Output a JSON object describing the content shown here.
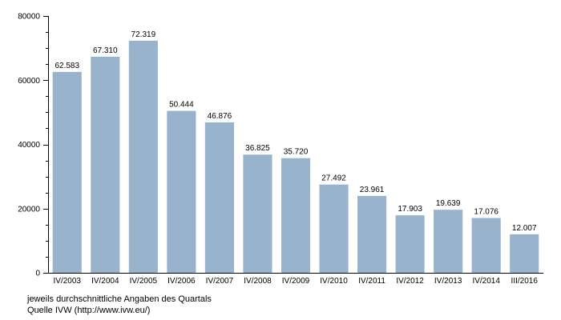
{
  "chart_data": {
    "type": "bar",
    "categories": [
      "IV/2003",
      "IV/2004",
      "IV/2005",
      "IV/2006",
      "IV/2007",
      "IV/2008",
      "IV/2009",
      "IV/2010",
      "IV/2011",
      "IV/2012",
      "IV/2013",
      "IV/2014",
      "III/2016"
    ],
    "values": [
      62583,
      67310,
      72319,
      50444,
      46876,
      36825,
      35720,
      27492,
      23961,
      17903,
      19639,
      17076,
      12007
    ],
    "value_labels": [
      "62.583",
      "67.310",
      "72.319",
      "50.444",
      "46.876",
      "36.825",
      "35.720",
      "27.492",
      "23.961",
      "17.903",
      "19.639",
      "17.076",
      "12.007"
    ],
    "title": "",
    "xlabel": "",
    "ylabel": "",
    "ylim": [
      0,
      80000
    ],
    "yticks": [
      0,
      20000,
      40000,
      60000,
      80000
    ],
    "ytick_labels": [
      "0",
      "20000",
      "40000",
      "60000",
      "80000"
    ],
    "grid": false,
    "bar_color": "#9ab3cd"
  },
  "footnotes": {
    "line1": "jeweils durchschnittliche Angaben des Quartals",
    "line2": "Quelle IVW (http://www.ivw.eu/)"
  }
}
